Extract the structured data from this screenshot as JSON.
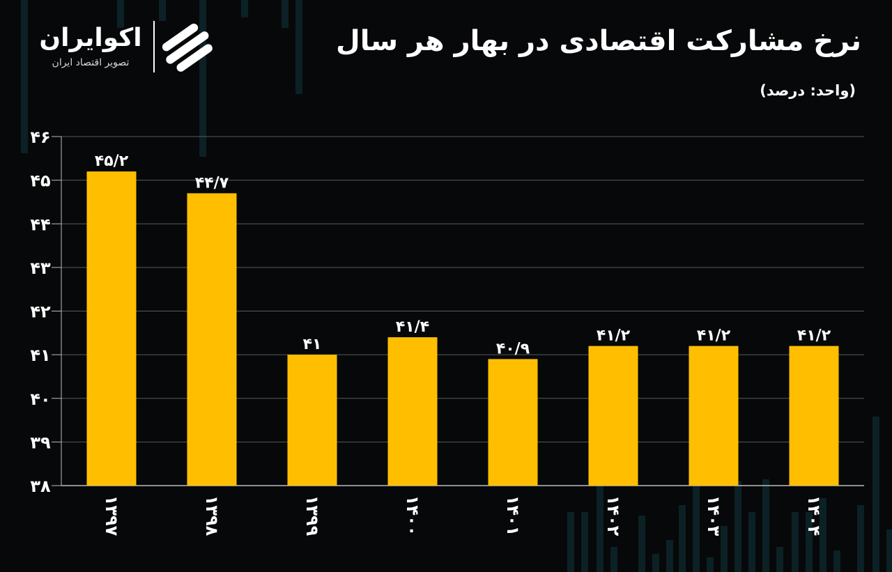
{
  "header": {
    "title": "نرخ مشارکت اقتصادی در بهار هر سال",
    "unit_label": "(واحد: درصد)"
  },
  "brand": {
    "name": "اکوایران",
    "tagline": "تصویر اقتصاد ایران",
    "logo_icon": "ecoiran-logo-icon"
  },
  "colors": {
    "background": "#070809",
    "bar": "#FFBF00",
    "grid": "#5a5a5a",
    "text": "#ffffff",
    "decoration": "#0f2a30"
  },
  "chart_data": {
    "type": "bar",
    "title": "نرخ مشارکت اقتصادی در بهار هر سال",
    "ylabel": "(واحد: درصد)",
    "xlabel": "",
    "categories": [
      "۱۳۹۷",
      "۱۳۹۸",
      "۱۳۹۹",
      "۱۴۰۰",
      "۱۴۰۱",
      "۱۴۰۲",
      "۱۴۰۳",
      "۱۴۰۴"
    ],
    "values": [
      45.2,
      44.7,
      41,
      41.4,
      40.9,
      41.2,
      41.2,
      41.2
    ],
    "value_labels": [
      "۴۵/۲",
      "۴۴/۷",
      "۴۱",
      "۴۱/۴",
      "۴۰/۹",
      "۴۱/۲",
      "۴۱/۲",
      "۴۱/۲"
    ],
    "ylim": [
      38,
      46
    ],
    "yticks": [
      38,
      39,
      40,
      41,
      42,
      43,
      44,
      45,
      46
    ],
    "ytick_labels": [
      "۳۸",
      "۳۹",
      "۴۰",
      "۴۱",
      "۴۲",
      "۴۳",
      "۴۴",
      "۴۵",
      "۴۶"
    ],
    "grid": true,
    "legend": "none"
  }
}
